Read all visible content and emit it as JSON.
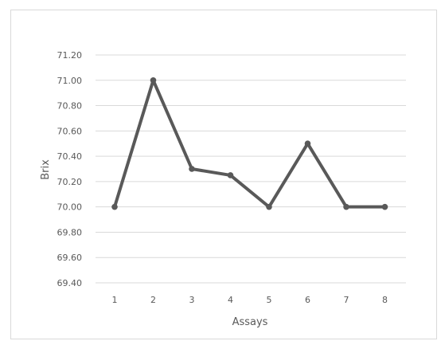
{
  "chart_data": {
    "type": "line",
    "title": "",
    "xlabel": "Assays",
    "ylabel": "Brix",
    "x": [
      1,
      2,
      3,
      4,
      5,
      6,
      7,
      8
    ],
    "series": [
      {
        "values": [
          70.0,
          71.0,
          70.3,
          70.25,
          70.0,
          70.5,
          70.0,
          70.0
        ]
      }
    ],
    "ylim": [
      69.4,
      71.2
    ],
    "yticks": [
      "71.20",
      "71.00",
      "70.80",
      "70.60",
      "70.40",
      "70.20",
      "70.00",
      "69.80",
      "69.60",
      "69.40"
    ],
    "xticks": [
      "1",
      "2",
      "3",
      "4",
      "5",
      "6",
      "7",
      "8"
    ],
    "grid": true,
    "legend": "none",
    "line_color": "#595959",
    "grid_color": "#d9d9d9"
  }
}
